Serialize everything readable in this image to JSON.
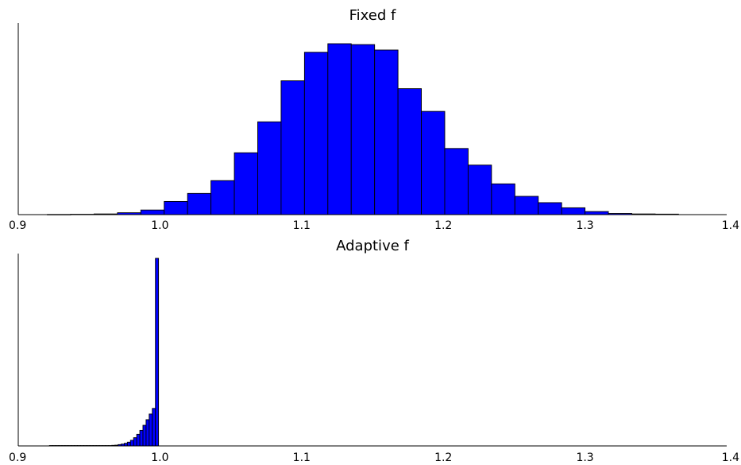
{
  "colors": {
    "bar_fill": "#0000ff",
    "bar_stroke": "#000000",
    "axis": "#000000"
  },
  "chart_data": [
    {
      "type": "bar",
      "subtype": "histogram",
      "title": "Fixed f",
      "xlabel": "",
      "ylabel": "",
      "xlim": [
        0.9,
        1.4
      ],
      "ylim": [
        0,
        1.0
      ],
      "y_ticks_shown": false,
      "grid": false,
      "legend": "none",
      "xticks": [
        "0.9",
        "1.0",
        "1.1",
        "1.2",
        "1.3",
        "1.4"
      ],
      "xtick_values": [
        0.9,
        1.0,
        1.1,
        1.2,
        1.3,
        1.4
      ],
      "bin_width": 0.0165,
      "bins": [
        {
          "x0": 0.9205,
          "value": 0.001
        },
        {
          "x0": 0.937,
          "value": 0.002
        },
        {
          "x0": 0.9535,
          "value": 0.004
        },
        {
          "x0": 0.97,
          "value": 0.011
        },
        {
          "x0": 0.9865,
          "value": 0.027
        },
        {
          "x0": 1.003,
          "value": 0.077
        },
        {
          "x0": 1.0195,
          "value": 0.124
        },
        {
          "x0": 1.036,
          "value": 0.199
        },
        {
          "x0": 1.0525,
          "value": 0.362
        },
        {
          "x0": 1.069,
          "value": 0.543
        },
        {
          "x0": 1.0855,
          "value": 0.783
        },
        {
          "x0": 1.102,
          "value": 0.95
        },
        {
          "x0": 1.1185,
          "value": 1.0
        },
        {
          "x0": 1.135,
          "value": 0.995
        },
        {
          "x0": 1.1515,
          "value": 0.963
        },
        {
          "x0": 1.168,
          "value": 0.737
        },
        {
          "x0": 1.1845,
          "value": 0.604
        },
        {
          "x0": 1.201,
          "value": 0.387
        },
        {
          "x0": 1.2175,
          "value": 0.29
        },
        {
          "x0": 1.234,
          "value": 0.18
        },
        {
          "x0": 1.2505,
          "value": 0.107
        },
        {
          "x0": 1.267,
          "value": 0.07
        },
        {
          "x0": 1.2835,
          "value": 0.04
        },
        {
          "x0": 1.3,
          "value": 0.018
        },
        {
          "x0": 1.3165,
          "value": 0.007
        },
        {
          "x0": 1.333,
          "value": 0.004
        },
        {
          "x0": 1.3495,
          "value": 0.003
        }
      ]
    },
    {
      "type": "bar",
      "subtype": "histogram",
      "title": "Adaptive f",
      "xlabel": "",
      "ylabel": "",
      "xlim": [
        0.9,
        1.4
      ],
      "ylim": [
        0,
        1.0
      ],
      "y_ticks_shown": false,
      "grid": false,
      "legend": "none",
      "xticks": [
        "0.9",
        "1.0",
        "1.1",
        "1.2",
        "1.3",
        "1.4"
      ],
      "xtick_values": [
        0.9,
        1.0,
        1.1,
        1.2,
        1.3,
        1.4
      ],
      "bin_width": 0.0022,
      "bins": [
        {
          "x0": 0.922,
          "value": 0.002
        },
        {
          "x0": 0.9242,
          "value": 0.002
        },
        {
          "x0": 0.9264,
          "value": 0.002
        },
        {
          "x0": 0.9286,
          "value": 0.002
        },
        {
          "x0": 0.9308,
          "value": 0.002
        },
        {
          "x0": 0.933,
          "value": 0.002
        },
        {
          "x0": 0.9352,
          "value": 0.002
        },
        {
          "x0": 0.9374,
          "value": 0.002
        },
        {
          "x0": 0.9396,
          "value": 0.002
        },
        {
          "x0": 0.9418,
          "value": 0.002
        },
        {
          "x0": 0.944,
          "value": 0.002
        },
        {
          "x0": 0.9462,
          "value": 0.002
        },
        {
          "x0": 0.9484,
          "value": 0.002
        },
        {
          "x0": 0.9506,
          "value": 0.002
        },
        {
          "x0": 0.9528,
          "value": 0.002
        },
        {
          "x0": 0.955,
          "value": 0.002
        },
        {
          "x0": 0.9572,
          "value": 0.002
        },
        {
          "x0": 0.9594,
          "value": 0.002
        },
        {
          "x0": 0.9616,
          "value": 0.002
        },
        {
          "x0": 0.9638,
          "value": 0.002
        },
        {
          "x0": 0.966,
          "value": 0.003
        },
        {
          "x0": 0.9682,
          "value": 0.004
        },
        {
          "x0": 0.9704,
          "value": 0.007
        },
        {
          "x0": 0.9726,
          "value": 0.01
        },
        {
          "x0": 0.9748,
          "value": 0.014
        },
        {
          "x0": 0.977,
          "value": 0.02
        },
        {
          "x0": 0.9792,
          "value": 0.03
        },
        {
          "x0": 0.9814,
          "value": 0.044
        },
        {
          "x0": 0.9836,
          "value": 0.062
        },
        {
          "x0": 0.9858,
          "value": 0.083
        },
        {
          "x0": 0.988,
          "value": 0.11
        },
        {
          "x0": 0.9902,
          "value": 0.14
        },
        {
          "x0": 0.9924,
          "value": 0.17
        },
        {
          "x0": 0.9946,
          "value": 0.2
        },
        {
          "x0": 0.9968,
          "value": 1.0
        }
      ]
    }
  ]
}
